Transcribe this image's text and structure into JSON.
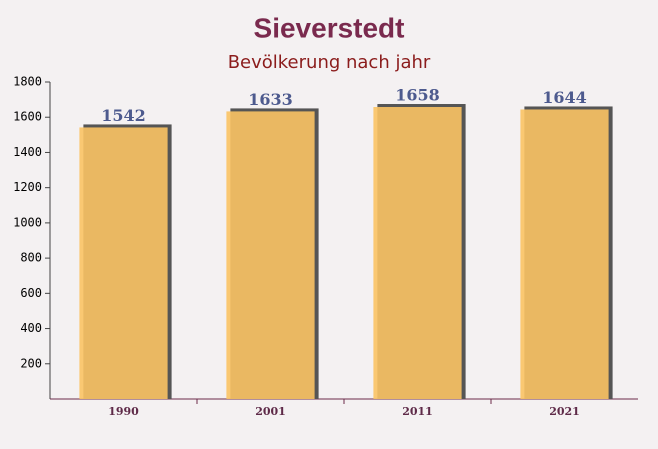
{
  "chart_data": {
    "type": "bar",
    "title": "Sieverstedt",
    "subtitle": "Bevölkerung nach jahr",
    "categories": [
      "1990",
      "2001",
      "2011",
      "2021"
    ],
    "values": [
      1542,
      1633,
      1658,
      1644
    ],
    "color": "#fbc364",
    "ylim": [
      0,
      1800
    ],
    "yticks": [
      200,
      400,
      600,
      800,
      1000,
      1200,
      1400,
      1600,
      1800
    ]
  }
}
